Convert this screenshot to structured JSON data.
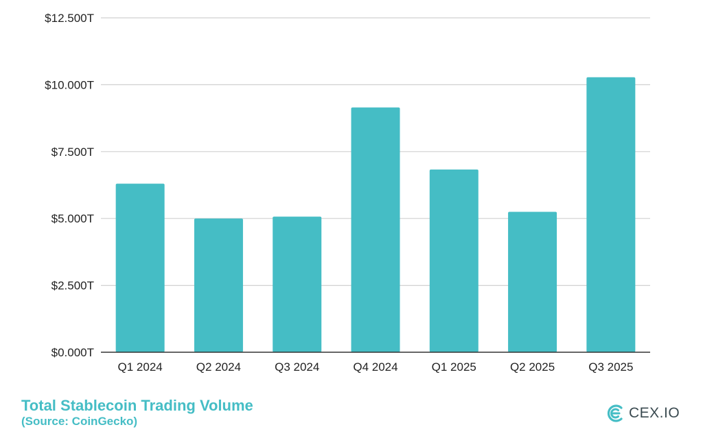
{
  "chart_data": {
    "type": "bar",
    "categories": [
      "Q1 2024",
      "Q2 2024",
      "Q3 2024",
      "Q4 2024",
      "Q1 2025",
      "Q2 2025",
      "Q3 2025"
    ],
    "values": [
      6.3,
      5.0,
      5.07,
      9.15,
      6.83,
      5.25,
      10.28
    ],
    "unit": "trillion USD",
    "ylim": [
      0,
      12.5
    ],
    "yticks": [
      0,
      2.5,
      5,
      7.5,
      10,
      12.5
    ],
    "ytick_labels": [
      "$0.000T",
      "$2.500T",
      "$5.000T",
      "$7.500T",
      "$10.000T",
      "$12.500T"
    ],
    "bar_color": "#45bdc5",
    "grid": true,
    "title": "Total Stablecoin Trading Volume",
    "subtitle": "(Source: CoinGecko)",
    "xlabel": "",
    "ylabel": ""
  },
  "footer": {
    "title": "Total Stablecoin Trading Volume",
    "source": "(Source: CoinGecko)"
  },
  "brand": {
    "name": "CEX.IO",
    "icon": "cex-io-logo-icon",
    "accent_color": "#45bdc5"
  }
}
